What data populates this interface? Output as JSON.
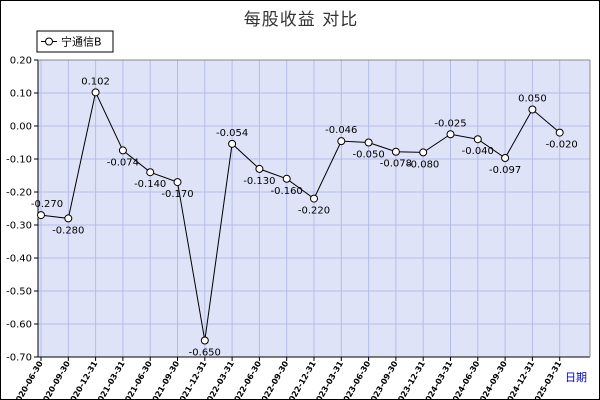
{
  "chart_data": {
    "type": "line",
    "title": "每股收益  对比",
    "xlabel": "日期",
    "ylabel": "",
    "ylim": [
      -0.7,
      0.2
    ],
    "yticks": [
      "0.20",
      "0.10",
      "0.00",
      "-0.10",
      "-0.20",
      "-0.30",
      "-0.40",
      "-0.50",
      "-0.60",
      "-0.70"
    ],
    "grid": true,
    "legend_position": "top-left",
    "categories": [
      "2020-06-30",
      "2020-09-30",
      "2020-12-31",
      "2021-03-31",
      "2021-06-30",
      "2021-09-30",
      "2021-12-31",
      "2022-03-31",
      "2022-06-30",
      "2022-09-30",
      "2022-12-31",
      "2023-03-31",
      "2023-06-30",
      "2023-09-30",
      "2023-12-31",
      "2024-03-31",
      "2024-06-30",
      "2024-09-30",
      "2024-12-31",
      "2025-03-31"
    ],
    "series": [
      {
        "name": "宁通信B",
        "values": [
          -0.27,
          -0.28,
          0.102,
          -0.074,
          -0.14,
          -0.17,
          -0.65,
          -0.054,
          -0.13,
          -0.16,
          -0.22,
          -0.046,
          -0.05,
          -0.078,
          -0.08,
          -0.025,
          -0.04,
          -0.097,
          0.05,
          -0.02
        ],
        "labels": [
          "-0.270",
          "-0.280",
          "0.102",
          "-0.074",
          "-0.140",
          "-0.170",
          "-0.650",
          "-0.054",
          "-0.130",
          "-0.160",
          "-0.220",
          "-0.046",
          "-0.050",
          "-0.078",
          "-0.080",
          "-0.025",
          "-0.040",
          "-0.097",
          "0.050",
          "-0.020"
        ]
      }
    ]
  },
  "colors": {
    "plot_background": "#dfe3f8",
    "grid": "#b4bde8",
    "line": "#000000",
    "x_axis_label": "#0000cc"
  }
}
